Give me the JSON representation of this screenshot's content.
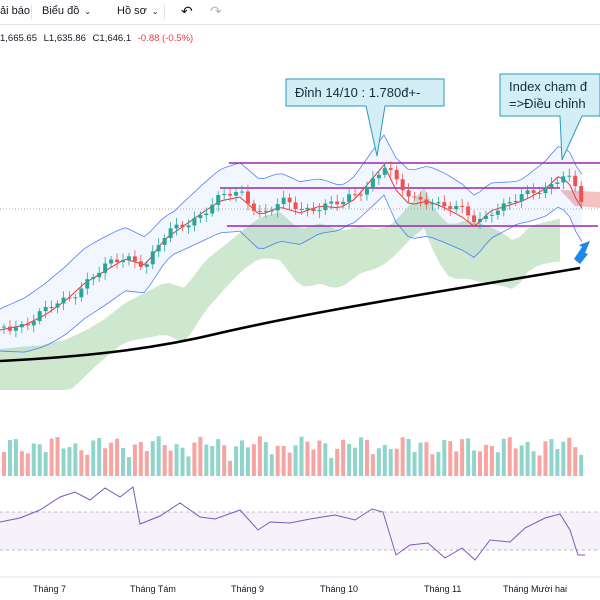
{
  "toolbar": {
    "alerts_label": "ải báo",
    "chart_label": "Biểu đồ",
    "profile_label": "Hồ sơ",
    "undo_icon": "undo-icon",
    "redo_icon": "redo-icon"
  },
  "ohlc": {
    "high": "1,665.65",
    "low_label": "L",
    "low": "1,635.86",
    "close_label": "C",
    "close": "1,646.1",
    "change": "-0.88 (-0.5%)"
  },
  "annotations": {
    "peak_note": "Đỉnh 14/10 : 1.780đ+-",
    "index_note_line1": "Index chạm đ",
    "index_note_line2": "=>Điều chỉnh"
  },
  "time_axis": {
    "labels": [
      "Tháng 7",
      "Tháng Tám",
      "Tháng 9",
      "Tháng 10",
      "Tháng 11",
      "Tháng Mười hai"
    ]
  },
  "colors": {
    "up": "#26a69a",
    "down": "#ef5350",
    "up_volume": "#8fd5cb",
    "down_volume": "#f6a5a3",
    "channel": "#9c27b0",
    "bollinger": "#2962ff",
    "ma": "#e53935",
    "long_ma": "#000000",
    "cloud_bull": "#a5d6a7",
    "cloud_bear": "#ef9a9a",
    "rsi": "#7e57c2",
    "callout_fill": "#d4eef5",
    "callout_stroke": "#2a9bb8",
    "arrow": "#1e88e5"
  }
}
